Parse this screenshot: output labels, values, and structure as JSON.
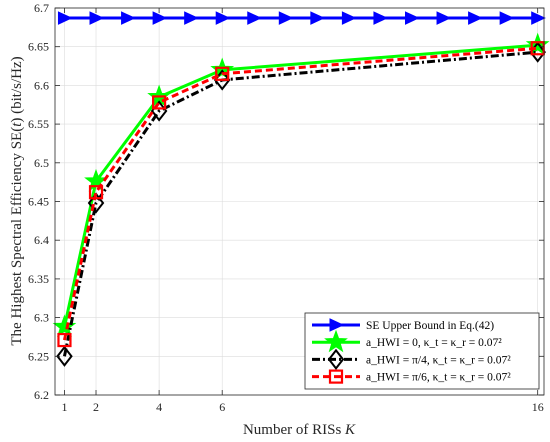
{
  "chart_data": {
    "type": "line",
    "xlabel": "Number of RISs K",
    "ylabel": "The Highest Spectral Efficiency SE(t) (bit/s/Hz)",
    "x": [
      1,
      2,
      4,
      6,
      16
    ],
    "x_ticks": [
      "1",
      "2",
      "4",
      "6",
      "16"
    ],
    "y_ticks": [
      "6.2",
      "6.25",
      "6.3",
      "6.35",
      "6.4",
      "6.45",
      "6.5",
      "6.55",
      "6.6",
      "6.65",
      "6.7"
    ],
    "xlim": [
      0.7,
      16.2
    ],
    "ylim": [
      6.2,
      6.7
    ],
    "grid": true,
    "legend_position": "bottom-right",
    "series": [
      {
        "name": "SE Upper Bound in Eq.(42)",
        "color": "#0000ff",
        "marker": "triangle-right",
        "dash": "solid",
        "x": [
          1,
          2,
          3,
          4,
          5,
          6,
          7,
          8,
          9,
          10,
          11,
          12,
          13,
          14,
          15,
          16
        ],
        "values": [
          6.687,
          6.687,
          6.687,
          6.687,
          6.687,
          6.687,
          6.687,
          6.687,
          6.687,
          6.687,
          6.687,
          6.687,
          6.687,
          6.687,
          6.687,
          6.687
        ]
      },
      {
        "name": "a_HWI = 0, κ_t = κ_r = 0.07²",
        "color": "#00ff00",
        "marker": "star",
        "dash": "solid",
        "x": [
          1,
          2,
          4,
          6,
          16
        ],
        "values": [
          6.288,
          6.476,
          6.585,
          6.62,
          6.652
        ]
      },
      {
        "name": "a_HWI = π/4, κ_t = κ_r = 0.07²",
        "color": "#000000",
        "marker": "diamond",
        "dash": "dashdot",
        "x": [
          1,
          2,
          4,
          6,
          16
        ],
        "values": [
          6.25,
          6.448,
          6.567,
          6.607,
          6.643
        ]
      },
      {
        "name": "a_HWI = π/6, κ_t = κ_r = 0.07²",
        "color": "#ff0000",
        "marker": "square",
        "dash": "dashed",
        "x": [
          1,
          2,
          4,
          6,
          16
        ],
        "values": [
          6.271,
          6.462,
          6.578,
          6.615,
          6.648
        ]
      }
    ]
  }
}
